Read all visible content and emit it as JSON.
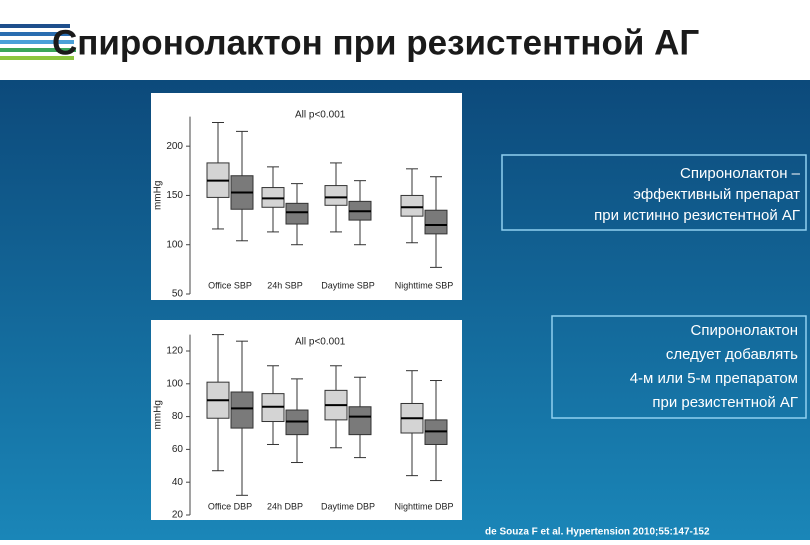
{
  "title": "Спиронолактон при резистентной АГ",
  "callouts": [
    [
      "Спиронолактон –",
      "эффективный препарат",
      "при истинно резистентной АГ"
    ],
    [
      "Спиронолактон",
      "следует добавлять",
      "4-м или 5-м препаратом",
      "при резистентной АГ"
    ]
  ],
  "citation": "de Souza F et al. Hypertension 2010;55:147-152",
  "chart_data": [
    {
      "type": "box",
      "annotation": "All p<0.001",
      "y_label": "mmHg",
      "categories": [
        "Office SBP",
        "24h SBP",
        "Daytime SBP",
        "Nighttime SBP"
      ],
      "ylim": [
        50,
        230
      ],
      "yticks": [
        50,
        100,
        150,
        200
      ],
      "series": [
        {
          "color": "#d4d4d4",
          "min": [
            116,
            113,
            113,
            102
          ],
          "q1": [
            148,
            138,
            140,
            129
          ],
          "median": [
            165,
            147,
            148,
            138
          ],
          "q3": [
            183,
            158,
            160,
            150
          ],
          "max": [
            224,
            179,
            183,
            177
          ]
        },
        {
          "color": "#7a7a7a",
          "min": [
            104,
            100,
            100,
            77
          ],
          "q1": [
            136,
            121,
            125,
            111
          ],
          "median": [
            153,
            133,
            134,
            120
          ],
          "q3": [
            170,
            142,
            144,
            135
          ],
          "max": [
            215,
            162,
            165,
            169
          ]
        }
      ]
    },
    {
      "type": "box",
      "annotation": "All p<0.001",
      "y_label": "mmHg",
      "categories": [
        "Office DBP",
        "24h DBP",
        "Daytime DBP",
        "Nighttime DBP"
      ],
      "ylim": [
        20,
        130
      ],
      "yticks": [
        20,
        40,
        60,
        80,
        100,
        120
      ],
      "series": [
        {
          "color": "#d4d4d4",
          "min": [
            47,
            63,
            61,
            44
          ],
          "q1": [
            79,
            77,
            78,
            70
          ],
          "median": [
            90,
            86,
            87,
            79
          ],
          "q3": [
            101,
            94,
            96,
            88
          ],
          "max": [
            130,
            111,
            111,
            108
          ]
        },
        {
          "color": "#7a7a7a",
          "min": [
            32,
            52,
            55,
            41
          ],
          "q1": [
            73,
            69,
            69,
            63
          ],
          "median": [
            85,
            77,
            80,
            71
          ],
          "q3": [
            95,
            84,
            86,
            78
          ],
          "max": [
            126,
            103,
            104,
            102
          ]
        }
      ]
    }
  ]
}
